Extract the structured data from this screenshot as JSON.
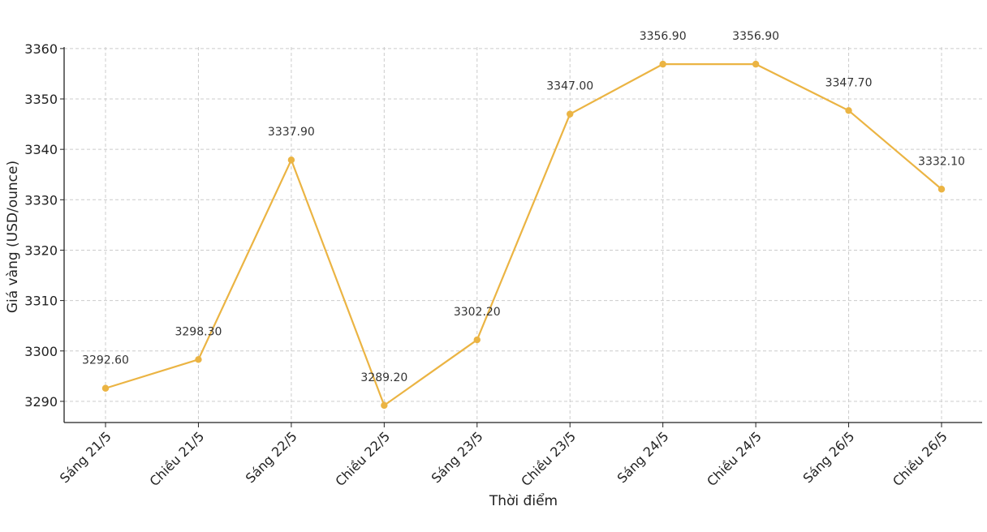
{
  "chart_data": {
    "type": "line",
    "title": "",
    "xlabel": "Thời điểm",
    "ylabel": "Giá vàng (USD/ounce)",
    "categories": [
      "Sáng 21/5",
      "Chiều 21/5",
      "Sáng 22/5",
      "Chiều 22/5",
      "Sáng 23/5",
      "Chiều 23/5",
      "Sáng 24/5",
      "Chiều 24/5",
      "Sáng 26/5",
      "Chiều 26/5"
    ],
    "series": [
      {
        "values": [
          3292.6,
          3298.3,
          3337.9,
          3289.2,
          3302.2,
          3347.0,
          3356.9,
          3356.9,
          3347.7,
          3332.1
        ],
        "labels": [
          "3292.60",
          "3298.30",
          "3337.90",
          "3289.20",
          "3302.20",
          "3347.00",
          "3356.90",
          "3356.90",
          "3347.70",
          "3332.10"
        ],
        "color": "#EBB443"
      }
    ],
    "ylim": [
      3285.8,
      3360.3
    ],
    "yticks": [
      3290,
      3300,
      3310,
      3320,
      3330,
      3340,
      3350,
      3360
    ],
    "grid": true,
    "legend": "none"
  }
}
